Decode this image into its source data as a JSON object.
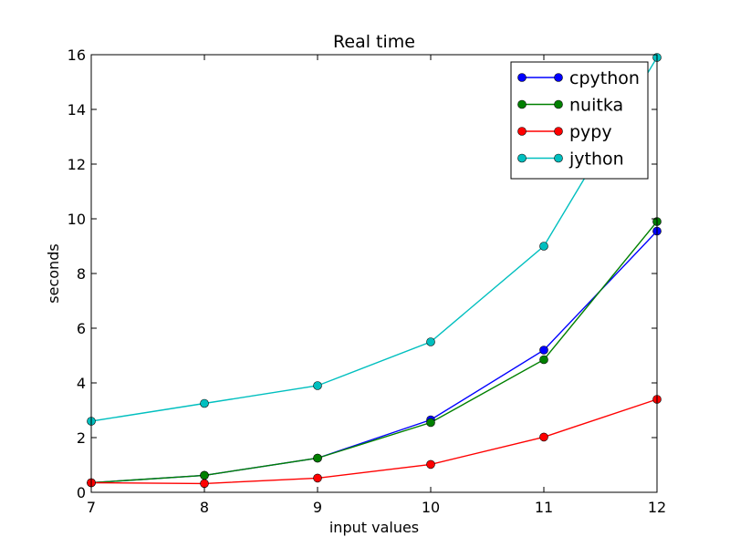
{
  "chart_data": {
    "type": "line",
    "title": "Real time",
    "xlabel": "input values",
    "ylabel": "seconds",
    "x": [
      7,
      8,
      9,
      10,
      11,
      12
    ],
    "xlim": [
      7,
      12
    ],
    "ylim": [
      0,
      16
    ],
    "xticks": [
      "7",
      "8",
      "9",
      "10",
      "11",
      "12"
    ],
    "yticks": [
      "0",
      "2",
      "4",
      "6",
      "8",
      "10",
      "12",
      "14",
      "16"
    ],
    "grid": false,
    "legend_position": "top-right",
    "series": [
      {
        "name": "cpython",
        "color": "#0000ff",
        "values": [
          0.35,
          0.62,
          1.25,
          2.65,
          5.2,
          9.55
        ]
      },
      {
        "name": "nuitka",
        "color": "#008000",
        "values": [
          0.35,
          0.62,
          1.25,
          2.55,
          4.85,
          9.9
        ]
      },
      {
        "name": "pypy",
        "color": "#ff0000",
        "values": [
          0.35,
          0.32,
          0.52,
          1.02,
          2.02,
          3.4
        ]
      },
      {
        "name": "jython",
        "color": "#00bfbf",
        "values": [
          2.6,
          3.25,
          3.9,
          5.5,
          9.0,
          15.9
        ]
      }
    ]
  }
}
